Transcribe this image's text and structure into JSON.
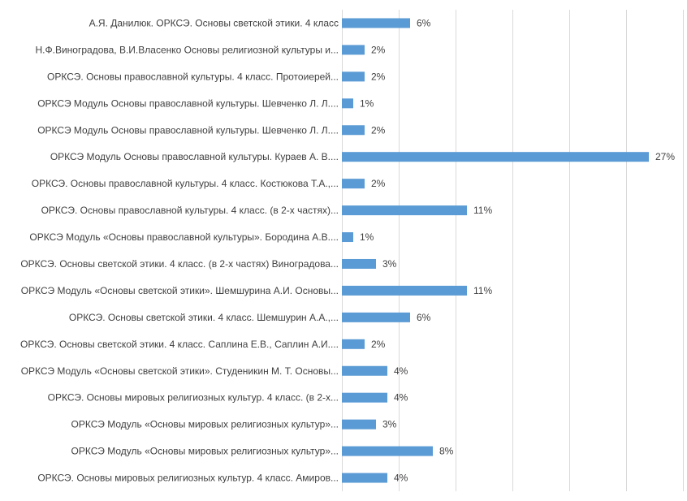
{
  "chart_data": {
    "type": "bar",
    "orientation": "horizontal",
    "title": "",
    "xlabel": "",
    "ylabel": "",
    "xlim": [
      0,
      30
    ],
    "grid": true,
    "legend": "none",
    "bar_color": "#5b9bd5",
    "categories": [
      "А.Я. Данилюк. ОРКСЭ. Основы светской этики. 4 класс",
      "Н.Ф.Виноградова, В.И.Власенко Основы религиозной культуры и...",
      "ОРКСЭ. Основы православной культуры. 4 класс. Протоиерей...",
      "ОРКСЭ Модуль Основы православной культуры. Шевченко Л. Л....",
      "ОРКСЭ Модуль Основы православной культуры. Шевченко Л. Л....",
      "ОРКСЭ Модуль Основы православной культуры. Кураев А. В....",
      "ОРКСЭ. Основы православной культуры. 4 класс. Костюкова Т.А.,...",
      "ОРКСЭ. Основы православной культуры. 4 класс. (в 2-х частях)...",
      "ОРКСЭ Модуль «Основы православной культуры». Бородина А.В....",
      "ОРКСЭ. Основы светской этики. 4 класс. (в 2-х частях) Виноградова...",
      "ОРКСЭ Модуль «Основы светской этики». Шемшурина А.И. Основы...",
      "ОРКСЭ. Основы светской этики. 4 класс. Шемшурин А.А.,...",
      "ОРКСЭ. Основы светской этики. 4 класс. Саплина Е.В., Саплин А.И....",
      "ОРКСЭ Модуль «Основы светской этики». Студеникин М. Т. Основы...",
      "ОРКСЭ. Основы мировых религиозных культур. 4 класс. (в 2-х...",
      "ОРКСЭ Модуль «Основы мировых религиозных культур»...",
      "ОРКСЭ Модуль «Основы мировых религиозных культур»...",
      "ОРКСЭ. Основы мировых религиозных культур. 4 класс. Амиров..."
    ],
    "values": [
      6,
      2,
      2,
      1,
      2,
      27,
      2,
      11,
      1,
      3,
      11,
      6,
      2,
      4,
      4,
      3,
      8,
      4
    ],
    "value_labels": [
      "6%",
      "2%",
      "2%",
      "1%",
      "2%",
      "27%",
      "2%",
      "11%",
      "1%",
      "3%",
      "11%",
      "6%",
      "2%",
      "4%",
      "4%",
      "3%",
      "8%",
      "4%"
    ],
    "value_unit": "%"
  }
}
